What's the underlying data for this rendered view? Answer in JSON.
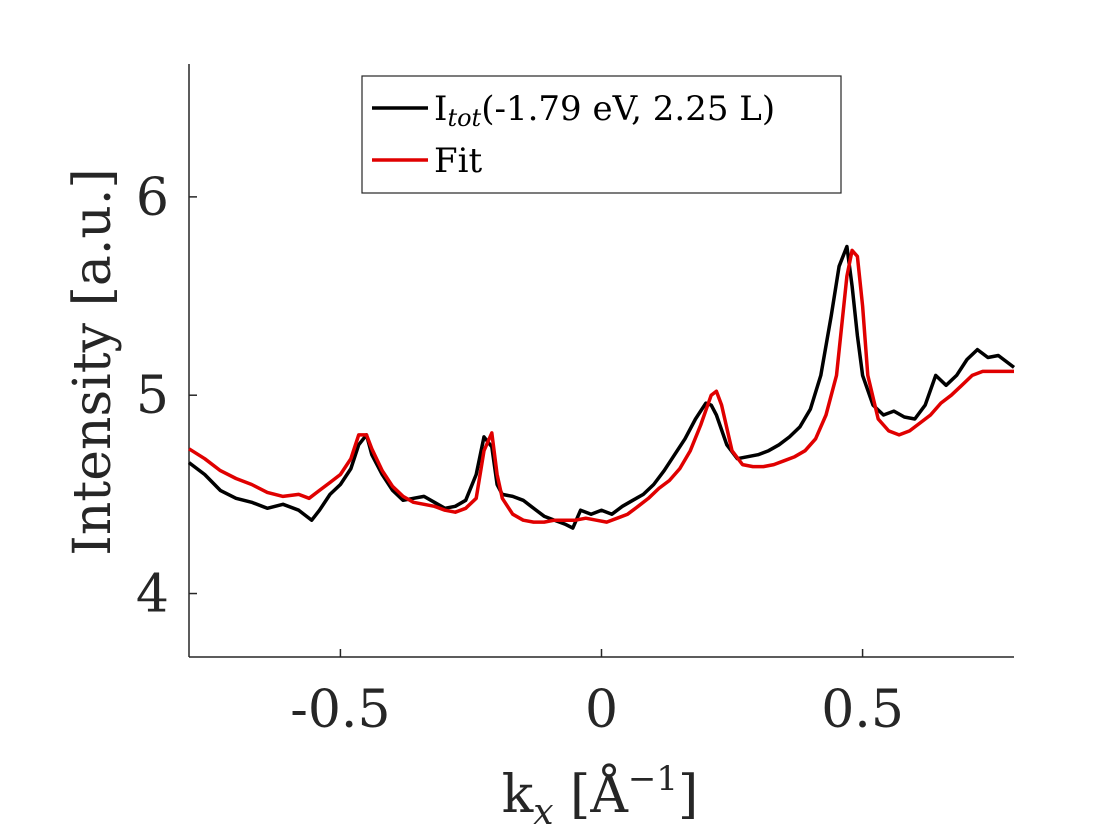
{
  "chart_data": {
    "type": "line",
    "xlabel": {
      "main": "k",
      "sub": "x",
      "rest": " [Å",
      "sup": "−1",
      "close": "]"
    },
    "ylabel": "Intensity [a.u.]",
    "xlim": [
      -0.79,
      0.79
    ],
    "ylim": [
      3.68,
      6.67
    ],
    "xticks": [
      -0.5,
      0,
      0.5
    ],
    "xtick_labels": [
      "-0.5",
      "0",
      "0.5"
    ],
    "yticks": [
      4,
      5,
      6
    ],
    "ytick_labels": [
      "4",
      "5",
      "6"
    ],
    "grid": false,
    "legend_position": "top-center",
    "series": [
      {
        "name": "I_tot(-1.79 eV, 2.25 L)",
        "legend": {
          "main": "I",
          "sub": "tot",
          "rest": "(-1.79 eV, 2.25 L)"
        },
        "color": "#000000",
        "x": [
          -0.79,
          -0.76,
          -0.73,
          -0.7,
          -0.67,
          -0.64,
          -0.61,
          -0.58,
          -0.555,
          -0.54,
          -0.52,
          -0.5,
          -0.48,
          -0.465,
          -0.45,
          -0.44,
          -0.42,
          -0.4,
          -0.38,
          -0.36,
          -0.34,
          -0.32,
          -0.3,
          -0.28,
          -0.26,
          -0.24,
          -0.225,
          -0.21,
          -0.2,
          -0.19,
          -0.17,
          -0.15,
          -0.13,
          -0.11,
          -0.09,
          -0.07,
          -0.055,
          -0.04,
          -0.02,
          0.0,
          0.02,
          0.04,
          0.06,
          0.08,
          0.1,
          0.12,
          0.14,
          0.16,
          0.18,
          0.2,
          0.21,
          0.22,
          0.24,
          0.26,
          0.28,
          0.3,
          0.32,
          0.34,
          0.36,
          0.38,
          0.4,
          0.42,
          0.44,
          0.455,
          0.47,
          0.48,
          0.49,
          0.5,
          0.52,
          0.54,
          0.56,
          0.58,
          0.6,
          0.62,
          0.64,
          0.66,
          0.68,
          0.7,
          0.72,
          0.74,
          0.76,
          0.79
        ],
        "y": [
          4.66,
          4.6,
          4.52,
          4.48,
          4.46,
          4.43,
          4.45,
          4.42,
          4.37,
          4.42,
          4.5,
          4.55,
          4.63,
          4.75,
          4.8,
          4.7,
          4.6,
          4.52,
          4.47,
          4.48,
          4.49,
          4.46,
          4.43,
          4.44,
          4.47,
          4.6,
          4.79,
          4.74,
          4.55,
          4.5,
          4.49,
          4.47,
          4.43,
          4.39,
          4.37,
          4.35,
          4.33,
          4.42,
          4.4,
          4.42,
          4.4,
          4.44,
          4.47,
          4.5,
          4.55,
          4.62,
          4.7,
          4.78,
          4.88,
          4.96,
          4.95,
          4.9,
          4.75,
          4.68,
          4.69,
          4.7,
          4.72,
          4.75,
          4.79,
          4.84,
          4.93,
          5.1,
          5.4,
          5.65,
          5.75,
          5.55,
          5.3,
          5.1,
          4.95,
          4.9,
          4.92,
          4.89,
          4.88,
          4.95,
          5.1,
          5.05,
          5.1,
          5.18,
          5.23,
          5.19,
          5.2,
          5.14
        ]
      },
      {
        "name": "Fit",
        "legend": {
          "main": "Fit",
          "sub": "",
          "rest": ""
        },
        "color": "#e00000",
        "x": [
          -0.79,
          -0.76,
          -0.73,
          -0.7,
          -0.67,
          -0.64,
          -0.61,
          -0.58,
          -0.56,
          -0.54,
          -0.52,
          -0.5,
          -0.48,
          -0.465,
          -0.45,
          -0.44,
          -0.42,
          -0.4,
          -0.38,
          -0.36,
          -0.34,
          -0.32,
          -0.3,
          -0.28,
          -0.26,
          -0.24,
          -0.225,
          -0.21,
          -0.2,
          -0.19,
          -0.17,
          -0.15,
          -0.13,
          -0.11,
          -0.09,
          -0.07,
          -0.05,
          -0.03,
          -0.01,
          0.01,
          0.03,
          0.05,
          0.07,
          0.09,
          0.11,
          0.13,
          0.15,
          0.17,
          0.19,
          0.21,
          0.22,
          0.23,
          0.25,
          0.27,
          0.29,
          0.31,
          0.33,
          0.35,
          0.37,
          0.39,
          0.41,
          0.43,
          0.45,
          0.46,
          0.47,
          0.48,
          0.49,
          0.5,
          0.51,
          0.53,
          0.55,
          0.57,
          0.59,
          0.61,
          0.63,
          0.65,
          0.67,
          0.69,
          0.71,
          0.73,
          0.75,
          0.79
        ],
        "y": [
          4.73,
          4.68,
          4.62,
          4.58,
          4.55,
          4.51,
          4.49,
          4.5,
          4.48,
          4.52,
          4.56,
          4.6,
          4.68,
          4.8,
          4.8,
          4.73,
          4.62,
          4.54,
          4.49,
          4.46,
          4.45,
          4.44,
          4.42,
          4.41,
          4.43,
          4.48,
          4.72,
          4.81,
          4.6,
          4.48,
          4.4,
          4.37,
          4.36,
          4.36,
          4.37,
          4.37,
          4.37,
          4.38,
          4.37,
          4.36,
          4.38,
          4.4,
          4.44,
          4.48,
          4.53,
          4.57,
          4.63,
          4.72,
          4.85,
          5.0,
          5.02,
          4.95,
          4.72,
          4.65,
          4.64,
          4.64,
          4.65,
          4.67,
          4.69,
          4.72,
          4.78,
          4.9,
          5.1,
          5.35,
          5.6,
          5.73,
          5.7,
          5.45,
          5.1,
          4.88,
          4.82,
          4.8,
          4.82,
          4.86,
          4.9,
          4.96,
          5.0,
          5.05,
          5.1,
          5.12,
          5.12,
          5.12
        ]
      }
    ]
  }
}
